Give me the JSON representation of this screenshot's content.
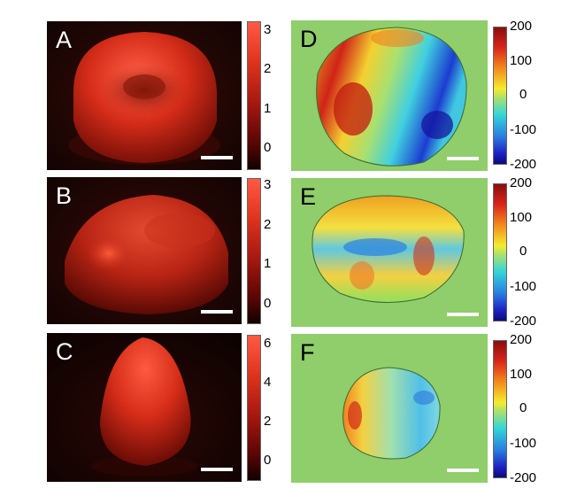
{
  "panels": {
    "A": {
      "letter": "A",
      "colorbar_ticks": [
        "3",
        "2",
        "1",
        "0"
      ]
    },
    "B": {
      "letter": "B",
      "colorbar_ticks": [
        "3",
        "2",
        "1",
        "0"
      ]
    },
    "C": {
      "letter": "C",
      "colorbar_ticks": [
        "6",
        "4",
        "2",
        "0"
      ]
    },
    "D": {
      "letter": "D",
      "colorbar_ticks": [
        "200",
        "100",
        "0",
        "-100",
        "-200"
      ]
    },
    "E": {
      "letter": "E",
      "colorbar_ticks": [
        "200",
        "100",
        "0",
        "-100",
        "-200"
      ]
    },
    "F": {
      "letter": "F",
      "colorbar_ticks": [
        "200",
        "100",
        "0",
        "-100",
        "-200"
      ]
    }
  },
  "colors": {
    "height_map_dark": "#1a0604",
    "height_map_red": "#e0301c",
    "phase_background": "#8fce6a",
    "scalebar": "#ffffff"
  }
}
